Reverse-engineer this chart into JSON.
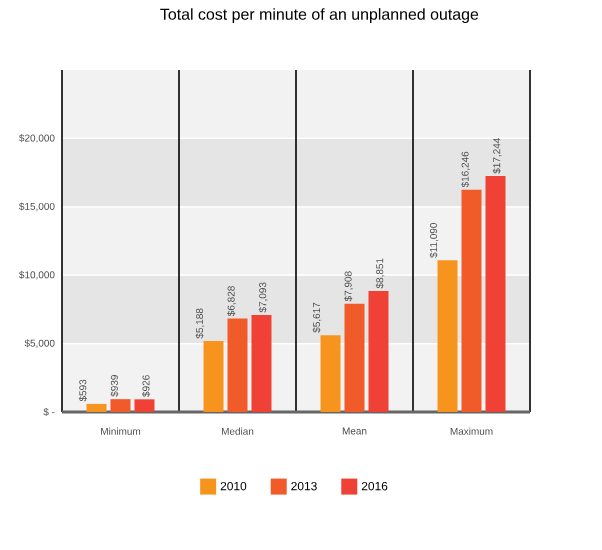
{
  "chart_data": {
    "type": "bar",
    "title": "Total cost per minute of an unplanned outage",
    "categories": [
      "Minimum",
      "Median",
      "Mean",
      "Maximum"
    ],
    "series": [
      {
        "name": "2010",
        "color": "#f7941d",
        "values": [
          593,
          5188,
          5617,
          11090
        ],
        "value_labels": [
          "$593",
          "$5,188",
          "$5,617",
          "$11,090"
        ]
      },
      {
        "name": "2013",
        "color": "#f15a29",
        "values": [
          939,
          6828,
          7908,
          16246
        ],
        "value_labels": [
          "$939",
          "$6,828",
          "$7,908",
          "$16,246"
        ]
      },
      {
        "name": "2016",
        "color": "#ef4136",
        "values": [
          926,
          7093,
          8851,
          17244
        ],
        "value_labels": [
          "$926",
          "$7,093",
          "$8,851",
          "$17,244"
        ]
      }
    ],
    "ylim": [
      0,
      25000
    ],
    "yticks": [
      {
        "value": 0,
        "label": "$ -"
      },
      {
        "value": 5000,
        "label": "$5,000"
      },
      {
        "value": 10000,
        "label": "$10,000"
      },
      {
        "value": 15000,
        "label": "$15,000"
      },
      {
        "value": 20000,
        "label": "$20,000"
      }
    ],
    "grid": "y",
    "legend": "bottom"
  }
}
